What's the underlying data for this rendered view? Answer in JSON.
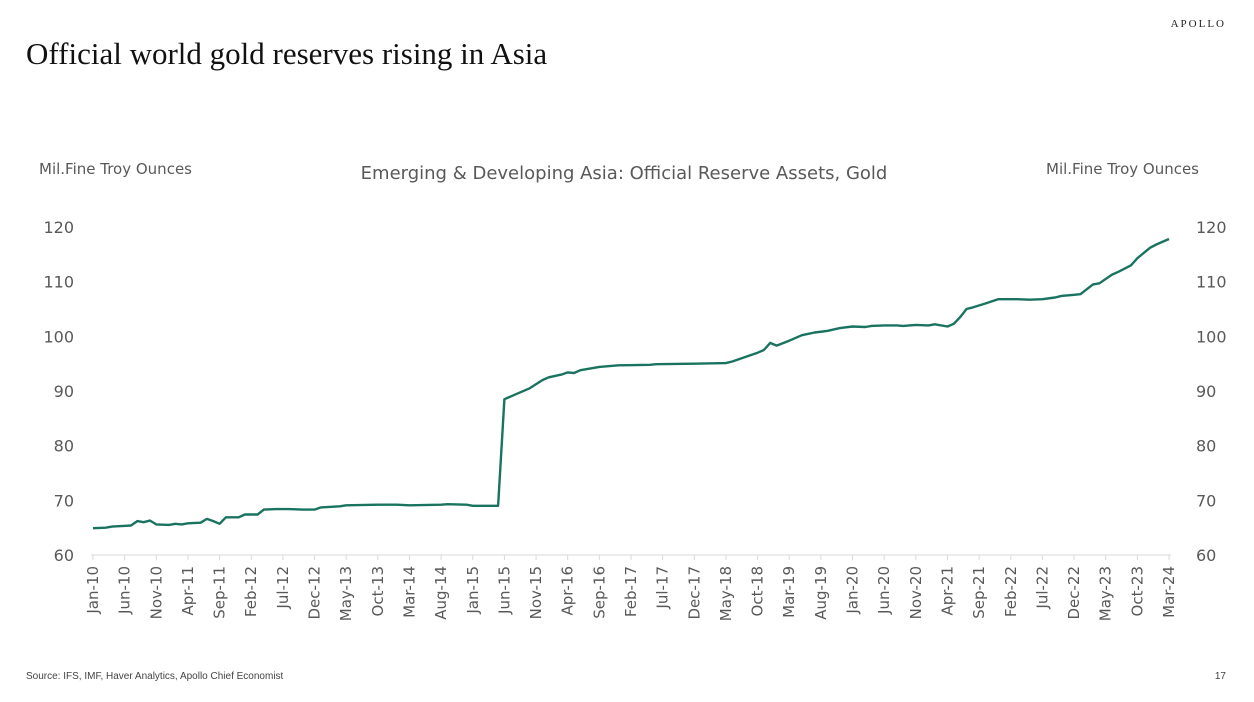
{
  "header": {
    "brand": "APOLLO",
    "title": "Official world gold reserves rising in Asia"
  },
  "footer": {
    "source": "Source: IFS, IMF, Haver Analytics, Apollo Chief Economist",
    "page_number": "17"
  },
  "chart_data": {
    "type": "line",
    "title": "Emerging & Developing Asia: Official Reserve Assets, Gold",
    "ylabel_left": "Mil.Fine Troy Ounces",
    "ylabel_right": "Mil.Fine Troy Ounces",
    "ylim": [
      60,
      120
    ],
    "yticks": [
      60,
      70,
      80,
      90,
      100,
      110,
      120
    ],
    "grid": false,
    "xlim": [
      "Jan-10",
      "Mar-24"
    ],
    "xtick_labels": [
      "Jan-10",
      "Jun-10",
      "Nov-10",
      "Apr-11",
      "Sep-11",
      "Feb-12",
      "Jul-12",
      "Dec-12",
      "May-13",
      "Oct-13",
      "Mar-14",
      "Aug-14",
      "Jan-15",
      "Jun-15",
      "Nov-15",
      "Apr-16",
      "Sep-16",
      "Feb-17",
      "Jul-17",
      "Dec-17",
      "May-18",
      "Oct-18",
      "Mar-19",
      "Aug-19",
      "Jan-20",
      "Jun-20",
      "Nov-20",
      "Apr-21",
      "Sep-21",
      "Feb-22",
      "Jul-22",
      "Dec-22",
      "May-23",
      "Oct-23",
      "Mar-24"
    ],
    "series": [
      {
        "color": "#1a7361",
        "points": [
          [
            "Jan-10",
            64.9
          ],
          [
            "Mar-10",
            65.0
          ],
          [
            "Apr-10",
            65.2
          ],
          [
            "Jul-10",
            65.4
          ],
          [
            "Aug-10",
            66.2
          ],
          [
            "Sep-10",
            66.0
          ],
          [
            "Oct-10",
            66.3
          ],
          [
            "Nov-10",
            65.6
          ],
          [
            "Jan-11",
            65.5
          ],
          [
            "Feb-11",
            65.7
          ],
          [
            "Mar-11",
            65.6
          ],
          [
            "Apr-11",
            65.8
          ],
          [
            "Jun-11",
            65.9
          ],
          [
            "Jul-11",
            66.6
          ],
          [
            "Aug-11",
            66.2
          ],
          [
            "Sep-11",
            65.7
          ],
          [
            "Oct-11",
            66.9
          ],
          [
            "Dec-11",
            66.9
          ],
          [
            "Jan-12",
            67.4
          ],
          [
            "Mar-12",
            67.4
          ],
          [
            "Apr-12",
            68.3
          ],
          [
            "Jun-12",
            68.4
          ],
          [
            "Aug-12",
            68.4
          ],
          [
            "Oct-12",
            68.3
          ],
          [
            "Dec-12",
            68.3
          ],
          [
            "Jan-13",
            68.7
          ],
          [
            "Apr-13",
            68.9
          ],
          [
            "May-13",
            69.1
          ],
          [
            "Oct-13",
            69.2
          ],
          [
            "Jan-14",
            69.2
          ],
          [
            "Mar-14",
            69.1
          ],
          [
            "Aug-14",
            69.2
          ],
          [
            "Sep-14",
            69.3
          ],
          [
            "Dec-14",
            69.2
          ],
          [
            "Jan-15",
            69.0
          ],
          [
            "May-15",
            69.0
          ],
          [
            "Jun-15",
            88.5
          ],
          [
            "Aug-15",
            89.5
          ],
          [
            "Oct-15",
            90.5
          ],
          [
            "Dec-15",
            92.0
          ],
          [
            "Jan-16",
            92.5
          ],
          [
            "Mar-16",
            93.0
          ],
          [
            "Apr-16",
            93.4
          ],
          [
            "May-16",
            93.3
          ],
          [
            "Jun-16",
            93.8
          ],
          [
            "Sep-16",
            94.4
          ],
          [
            "Dec-16",
            94.7
          ],
          [
            "May-17",
            94.8
          ],
          [
            "Jun-17",
            94.9
          ],
          [
            "Dec-17",
            95.0
          ],
          [
            "May-18",
            95.1
          ],
          [
            "Jun-18",
            95.4
          ],
          [
            "Aug-18",
            96.2
          ],
          [
            "Oct-18",
            97.0
          ],
          [
            "Nov-18",
            97.5
          ],
          [
            "Dec-18",
            98.8
          ],
          [
            "Jan-19",
            98.3
          ],
          [
            "Mar-19",
            99.2
          ],
          [
            "May-19",
            100.2
          ],
          [
            "Jul-19",
            100.7
          ],
          [
            "Sep-19",
            101.0
          ],
          [
            "Nov-19",
            101.5
          ],
          [
            "Jan-20",
            101.8
          ],
          [
            "Mar-20",
            101.7
          ],
          [
            "Apr-20",
            101.9
          ],
          [
            "Jun-20",
            102.0
          ],
          [
            "Aug-20",
            102.0
          ],
          [
            "Sep-20",
            101.9
          ],
          [
            "Nov-20",
            102.1
          ],
          [
            "Jan-21",
            102.0
          ],
          [
            "Feb-21",
            102.2
          ],
          [
            "Apr-21",
            101.8
          ],
          [
            "May-21",
            102.3
          ],
          [
            "Jun-21",
            103.5
          ],
          [
            "Jul-21",
            105.0
          ],
          [
            "Aug-21",
            105.3
          ],
          [
            "Oct-21",
            106.0
          ],
          [
            "Dec-21",
            106.8
          ],
          [
            "Jan-22",
            106.8
          ],
          [
            "Mar-22",
            106.8
          ],
          [
            "May-22",
            106.7
          ],
          [
            "Jul-22",
            106.8
          ],
          [
            "Sep-22",
            107.1
          ],
          [
            "Oct-22",
            107.4
          ],
          [
            "Dec-22",
            107.6
          ],
          [
            "Jan-23",
            107.7
          ],
          [
            "Mar-23",
            109.5
          ],
          [
            "Apr-23",
            109.7
          ],
          [
            "Jun-23",
            111.3
          ],
          [
            "Jul-23",
            111.8
          ],
          [
            "Sep-23",
            113.0
          ],
          [
            "Oct-23",
            114.3
          ],
          [
            "Dec-23",
            116.2
          ],
          [
            "Jan-24",
            116.8
          ],
          [
            "Mar-24",
            117.8
          ]
        ]
      }
    ]
  }
}
